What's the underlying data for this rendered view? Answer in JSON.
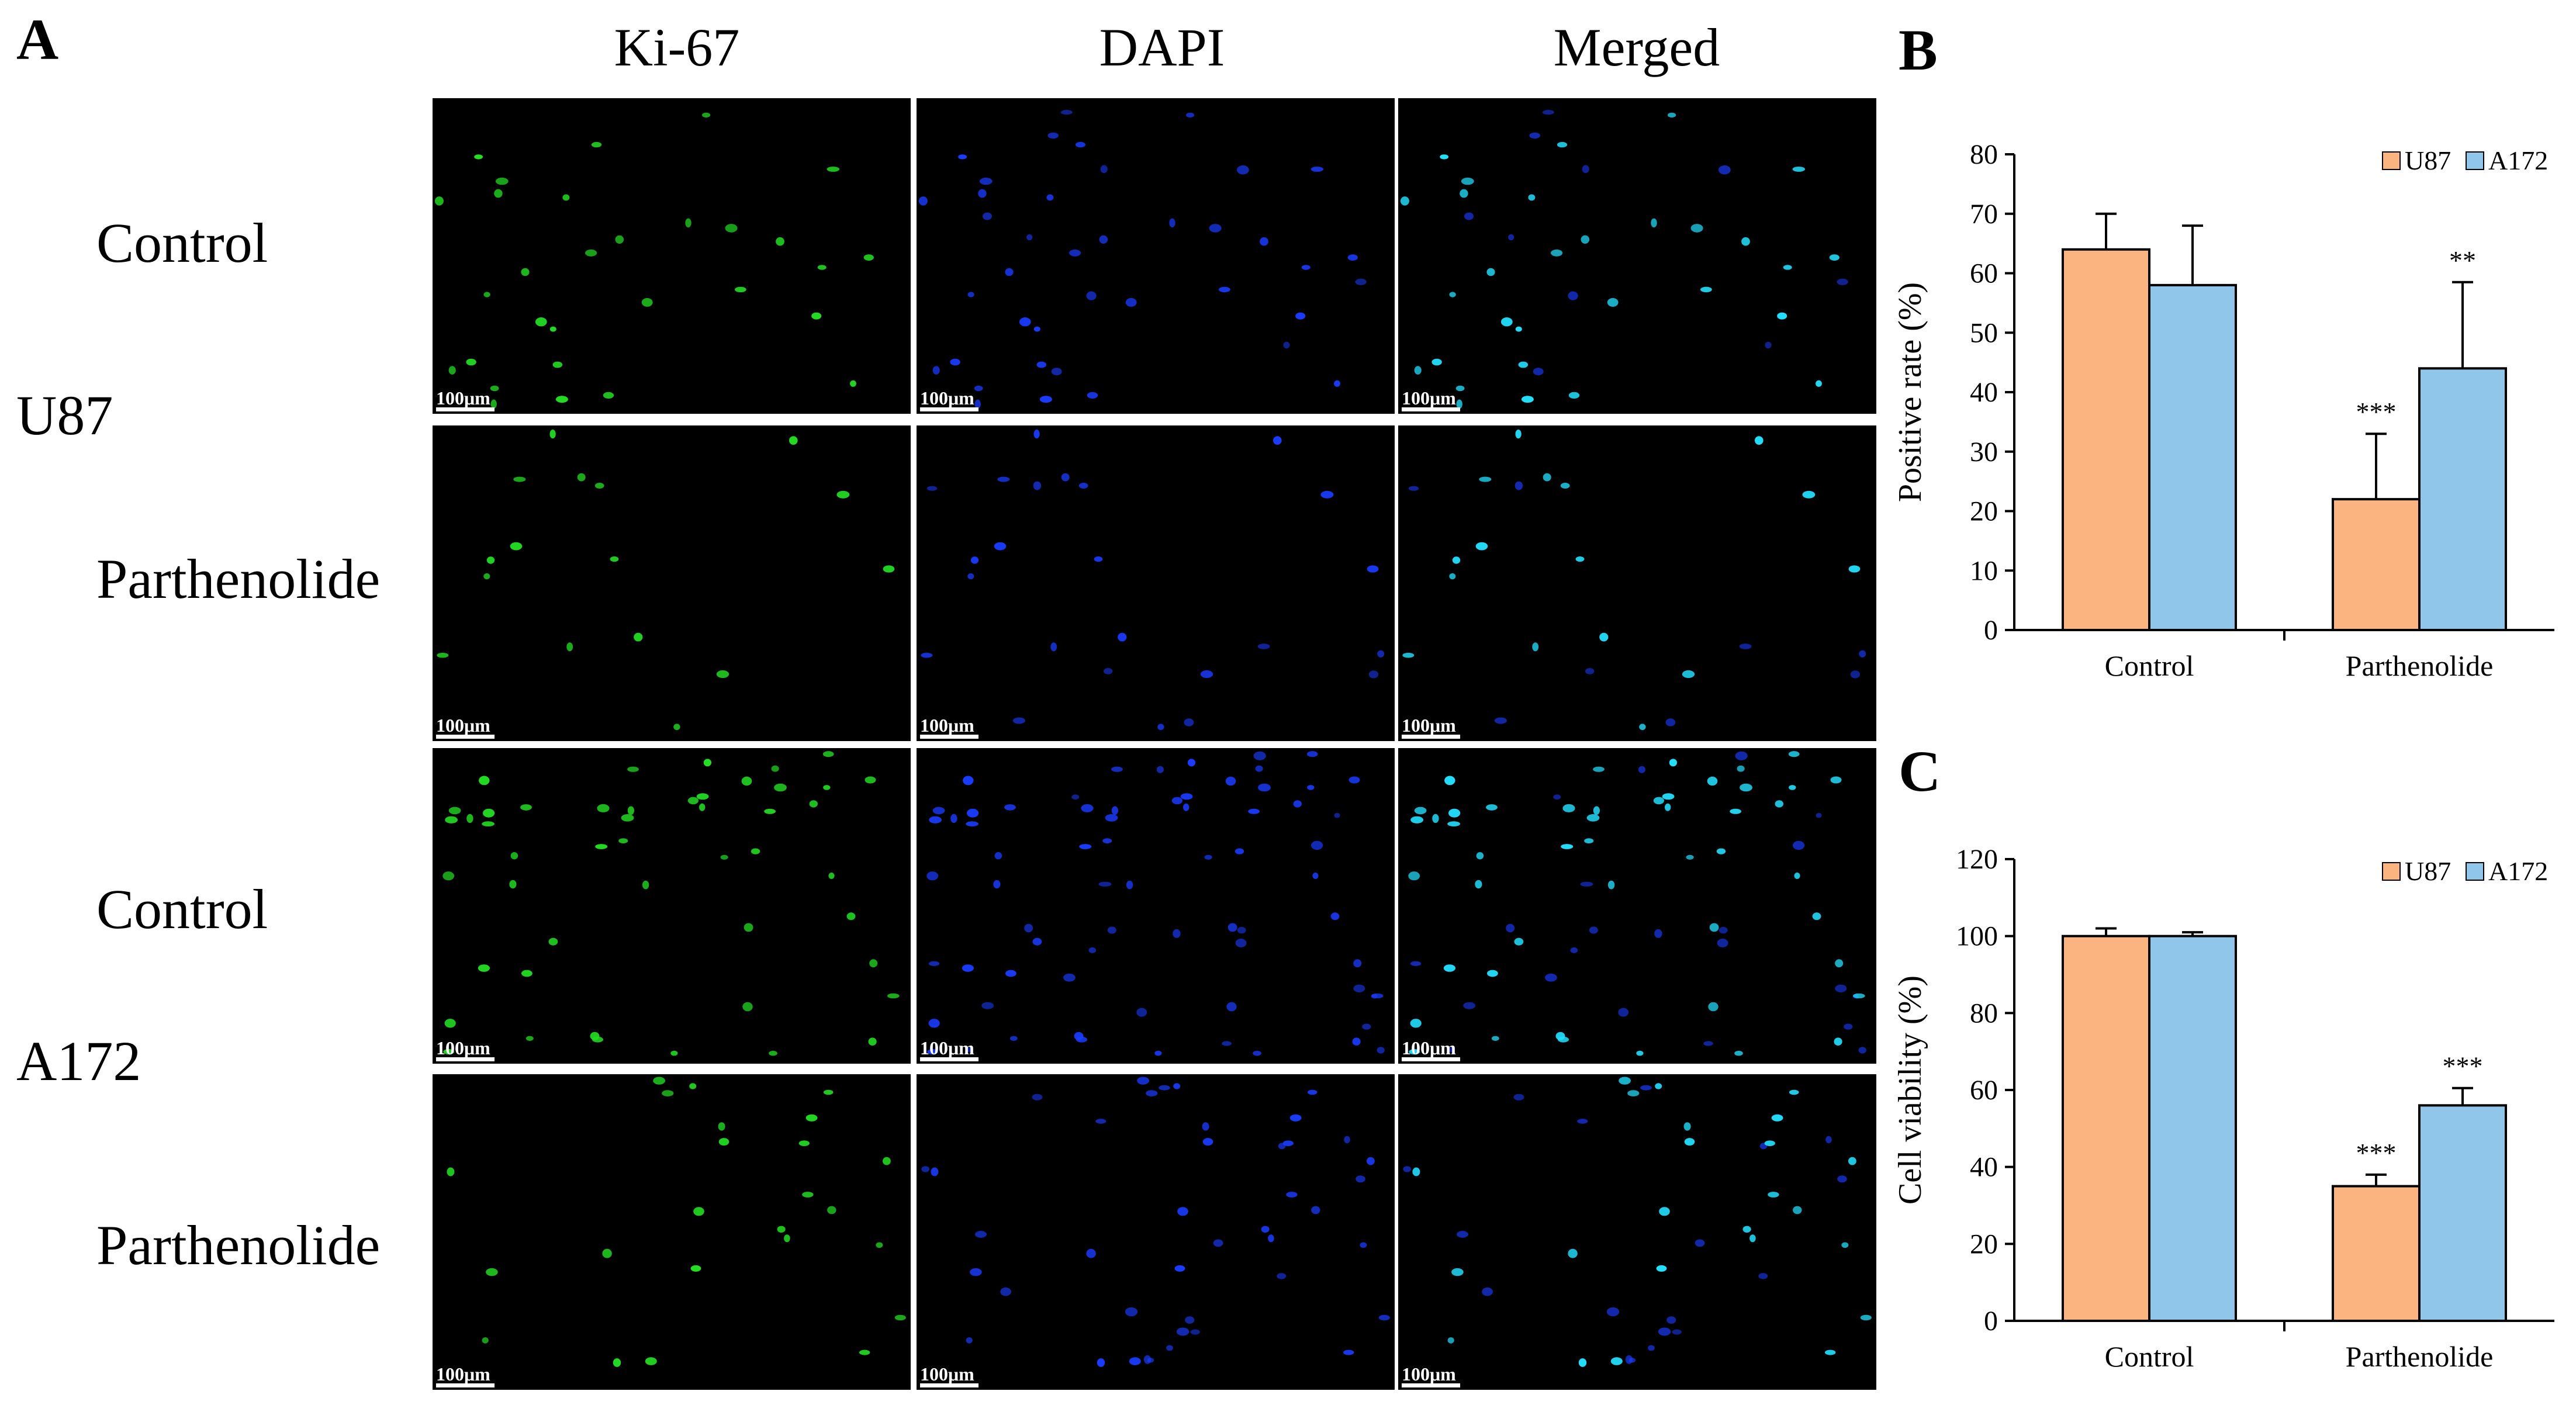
{
  "panelA": {
    "letter": "A",
    "columns": [
      "Ki-67",
      "DAPI",
      "Merged"
    ],
    "cell_lines": [
      {
        "name": "U87",
        "conditions": [
          "Control",
          "Parthenolide"
        ]
      },
      {
        "name": "A172",
        "conditions": [
          "Control",
          "Parthenolide"
        ]
      }
    ],
    "scale_bar": "100μm",
    "colors": {
      "ki67": "#22dd22",
      "dapi": "#1a3cff",
      "merged": "#22e0ff"
    }
  },
  "chart_data": [
    {
      "panel": "B",
      "type": "bar",
      "categories": [
        "Control",
        "Parthenolide"
      ],
      "series": [
        {
          "name": "U87",
          "color": "#fbb480",
          "values": [
            64,
            22
          ],
          "errors": [
            6,
            11
          ],
          "significance": [
            "",
            "***"
          ]
        },
        {
          "name": "A172",
          "color": "#90c6e9",
          "values": [
            58,
            44
          ],
          "errors": [
            10,
            14.5
          ],
          "significance": [
            "",
            "**"
          ]
        }
      ],
      "ylabel": "Positive rate (%)",
      "ylim": [
        0,
        80
      ],
      "yticks": [
        0,
        10,
        20,
        30,
        40,
        50,
        60,
        70,
        80
      ],
      "legend": "top-right"
    },
    {
      "panel": "C",
      "type": "bar",
      "categories": [
        "Control",
        "Parthenolide"
      ],
      "series": [
        {
          "name": "U87",
          "color": "#fbb480",
          "values": [
            100,
            35
          ],
          "errors": [
            2,
            3
          ],
          "significance": [
            "",
            "***"
          ]
        },
        {
          "name": "A172",
          "color": "#90c6e9",
          "values": [
            100,
            56
          ],
          "errors": [
            1,
            4.5
          ],
          "significance": [
            "",
            "***"
          ]
        }
      ],
      "ylabel": "Cell viability (%)",
      "ylim": [
        0,
        120
      ],
      "yticks": [
        0,
        20,
        40,
        60,
        80,
        100,
        120
      ],
      "legend": "top-right"
    }
  ]
}
